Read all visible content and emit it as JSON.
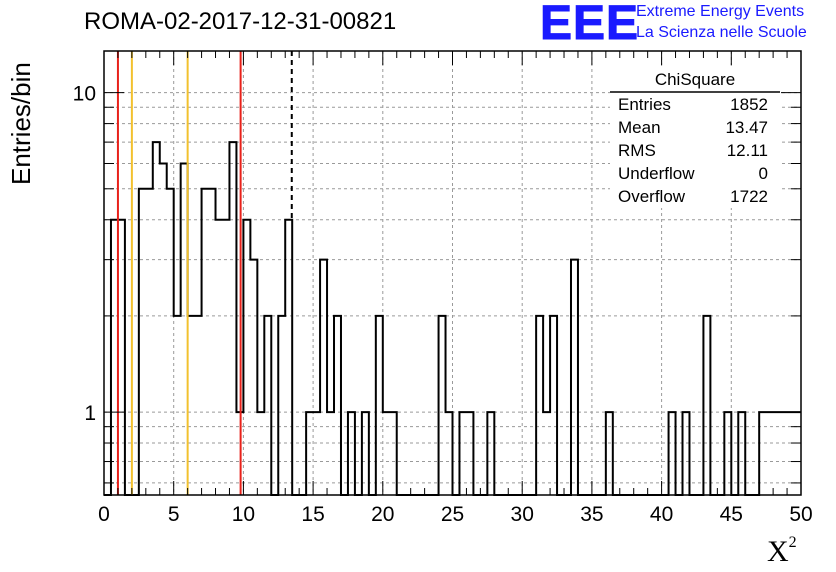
{
  "title": "ROMA-02-2017-12-31-00821",
  "logo": {
    "text": "EEE",
    "line1": "Extreme Energy Events",
    "line2": "La Scienza nelle Scuole",
    "color": "#1a1aff"
  },
  "stats_box": {
    "title": "ChiSquare",
    "rows": [
      {
        "label": "Entries",
        "value": "1852"
      },
      {
        "label": "Mean",
        "value": "13.47"
      },
      {
        "label": "RMS",
        "value": "12.11"
      },
      {
        "label": "Underflow",
        "value": "0"
      },
      {
        "label": "Overflow",
        "value": "1722"
      }
    ]
  },
  "chart_data": {
    "type": "histogram",
    "xlabel": "X",
    "xlabel_sup": "2",
    "ylabel": "Entries/bin",
    "xlim": [
      0,
      50
    ],
    "ylim": [
      0.55,
      13.5
    ],
    "log_y": true,
    "grid": true,
    "bin_width": 0.5,
    "x_ticks": [
      "0",
      "5",
      "10",
      "15",
      "20",
      "25",
      "30",
      "35",
      "40",
      "45",
      "50"
    ],
    "y_ticks": [
      {
        "value": 1,
        "label": "1"
      },
      {
        "value": 10,
        "label": "10"
      }
    ],
    "bins": [
      {
        "x": 0.0,
        "y": 0
      },
      {
        "x": 0.5,
        "y": 4
      },
      {
        "x": 1.0,
        "y": 4
      },
      {
        "x": 1.5,
        "y": 0
      },
      {
        "x": 2.0,
        "y": 0
      },
      {
        "x": 2.5,
        "y": 5
      },
      {
        "x": 3.0,
        "y": 5
      },
      {
        "x": 3.5,
        "y": 7
      },
      {
        "x": 4.0,
        "y": 6
      },
      {
        "x": 4.5,
        "y": 5
      },
      {
        "x": 5.0,
        "y": 2
      },
      {
        "x": 5.5,
        "y": 6
      },
      {
        "x": 6.0,
        "y": 2
      },
      {
        "x": 6.5,
        "y": 2
      },
      {
        "x": 7.0,
        "y": 5
      },
      {
        "x": 7.5,
        "y": 5
      },
      {
        "x": 8.0,
        "y": 4
      },
      {
        "x": 8.5,
        "y": 4
      },
      {
        "x": 9.0,
        "y": 7
      },
      {
        "x": 9.5,
        "y": 1
      },
      {
        "x": 10.0,
        "y": 4
      },
      {
        "x": 10.5,
        "y": 3
      },
      {
        "x": 11.0,
        "y": 1
      },
      {
        "x": 11.5,
        "y": 2
      },
      {
        "x": 12.0,
        "y": 0
      },
      {
        "x": 12.5,
        "y": 2
      },
      {
        "x": 13.0,
        "y": 4
      },
      {
        "x": 13.5,
        "y": 0
      },
      {
        "x": 14.0,
        "y": 0
      },
      {
        "x": 14.5,
        "y": 1
      },
      {
        "x": 15.0,
        "y": 1
      },
      {
        "x": 15.5,
        "y": 3
      },
      {
        "x": 16.0,
        "y": 1
      },
      {
        "x": 16.5,
        "y": 2
      },
      {
        "x": 17.0,
        "y": 0
      },
      {
        "x": 17.5,
        "y": 1
      },
      {
        "x": 18.0,
        "y": 0
      },
      {
        "x": 18.5,
        "y": 1
      },
      {
        "x": 19.0,
        "y": 0
      },
      {
        "x": 19.5,
        "y": 2
      },
      {
        "x": 20.0,
        "y": 1
      },
      {
        "x": 20.5,
        "y": 1
      },
      {
        "x": 21.0,
        "y": 0
      },
      {
        "x": 21.5,
        "y": 0
      },
      {
        "x": 22.0,
        "y": 0
      },
      {
        "x": 22.5,
        "y": 0
      },
      {
        "x": 23.0,
        "y": 0
      },
      {
        "x": 23.5,
        "y": 0
      },
      {
        "x": 24.0,
        "y": 2
      },
      {
        "x": 24.5,
        "y": 1
      },
      {
        "x": 25.0,
        "y": 0
      },
      {
        "x": 25.5,
        "y": 1
      },
      {
        "x": 26.0,
        "y": 1
      },
      {
        "x": 26.5,
        "y": 0
      },
      {
        "x": 27.0,
        "y": 0
      },
      {
        "x": 27.5,
        "y": 1
      },
      {
        "x": 28.0,
        "y": 0
      },
      {
        "x": 28.5,
        "y": 0
      },
      {
        "x": 29.0,
        "y": 0
      },
      {
        "x": 29.5,
        "y": 0
      },
      {
        "x": 30.0,
        "y": 0
      },
      {
        "x": 30.5,
        "y": 0
      },
      {
        "x": 31.0,
        "y": 2
      },
      {
        "x": 31.5,
        "y": 1
      },
      {
        "x": 32.0,
        "y": 2
      },
      {
        "x": 32.5,
        "y": 0
      },
      {
        "x": 33.0,
        "y": 0
      },
      {
        "x": 33.5,
        "y": 3
      },
      {
        "x": 34.0,
        "y": 0
      },
      {
        "x": 34.5,
        "y": 0
      },
      {
        "x": 35.0,
        "y": 0
      },
      {
        "x": 35.5,
        "y": 0
      },
      {
        "x": 36.0,
        "y": 1
      },
      {
        "x": 36.5,
        "y": 0
      },
      {
        "x": 37.0,
        "y": 0
      },
      {
        "x": 37.5,
        "y": 0
      },
      {
        "x": 38.0,
        "y": 0
      },
      {
        "x": 38.5,
        "y": 0
      },
      {
        "x": 39.0,
        "y": 0
      },
      {
        "x": 39.5,
        "y": 0
      },
      {
        "x": 40.0,
        "y": 0
      },
      {
        "x": 40.5,
        "y": 1
      },
      {
        "x": 41.0,
        "y": 0
      },
      {
        "x": 41.5,
        "y": 1
      },
      {
        "x": 42.0,
        "y": 0
      },
      {
        "x": 42.5,
        "y": 0
      },
      {
        "x": 43.0,
        "y": 2
      },
      {
        "x": 43.5,
        "y": 0
      },
      {
        "x": 44.0,
        "y": 0
      },
      {
        "x": 44.5,
        "y": 1
      },
      {
        "x": 45.0,
        "y": 0
      },
      {
        "x": 45.5,
        "y": 1
      },
      {
        "x": 46.0,
        "y": 0
      },
      {
        "x": 46.5,
        "y": 0
      },
      {
        "x": 47.0,
        "y": 1
      },
      {
        "x": 47.5,
        "y": 1
      },
      {
        "x": 48.0,
        "y": 1
      },
      {
        "x": 48.5,
        "y": 1
      },
      {
        "x": 49.0,
        "y": 1
      },
      {
        "x": 49.5,
        "y": 1
      }
    ],
    "vertical_lines": [
      {
        "x": 1.0,
        "color": "#e8211a",
        "style": "solid"
      },
      {
        "x": 2.0,
        "color": "#f2c12e",
        "style": "solid"
      },
      {
        "x": 6.0,
        "color": "#f2c12e",
        "style": "solid"
      },
      {
        "x": 9.8,
        "color": "#e8211a",
        "style": "solid"
      },
      {
        "x": 13.47,
        "color": "#000000",
        "style": "dashed"
      }
    ]
  }
}
